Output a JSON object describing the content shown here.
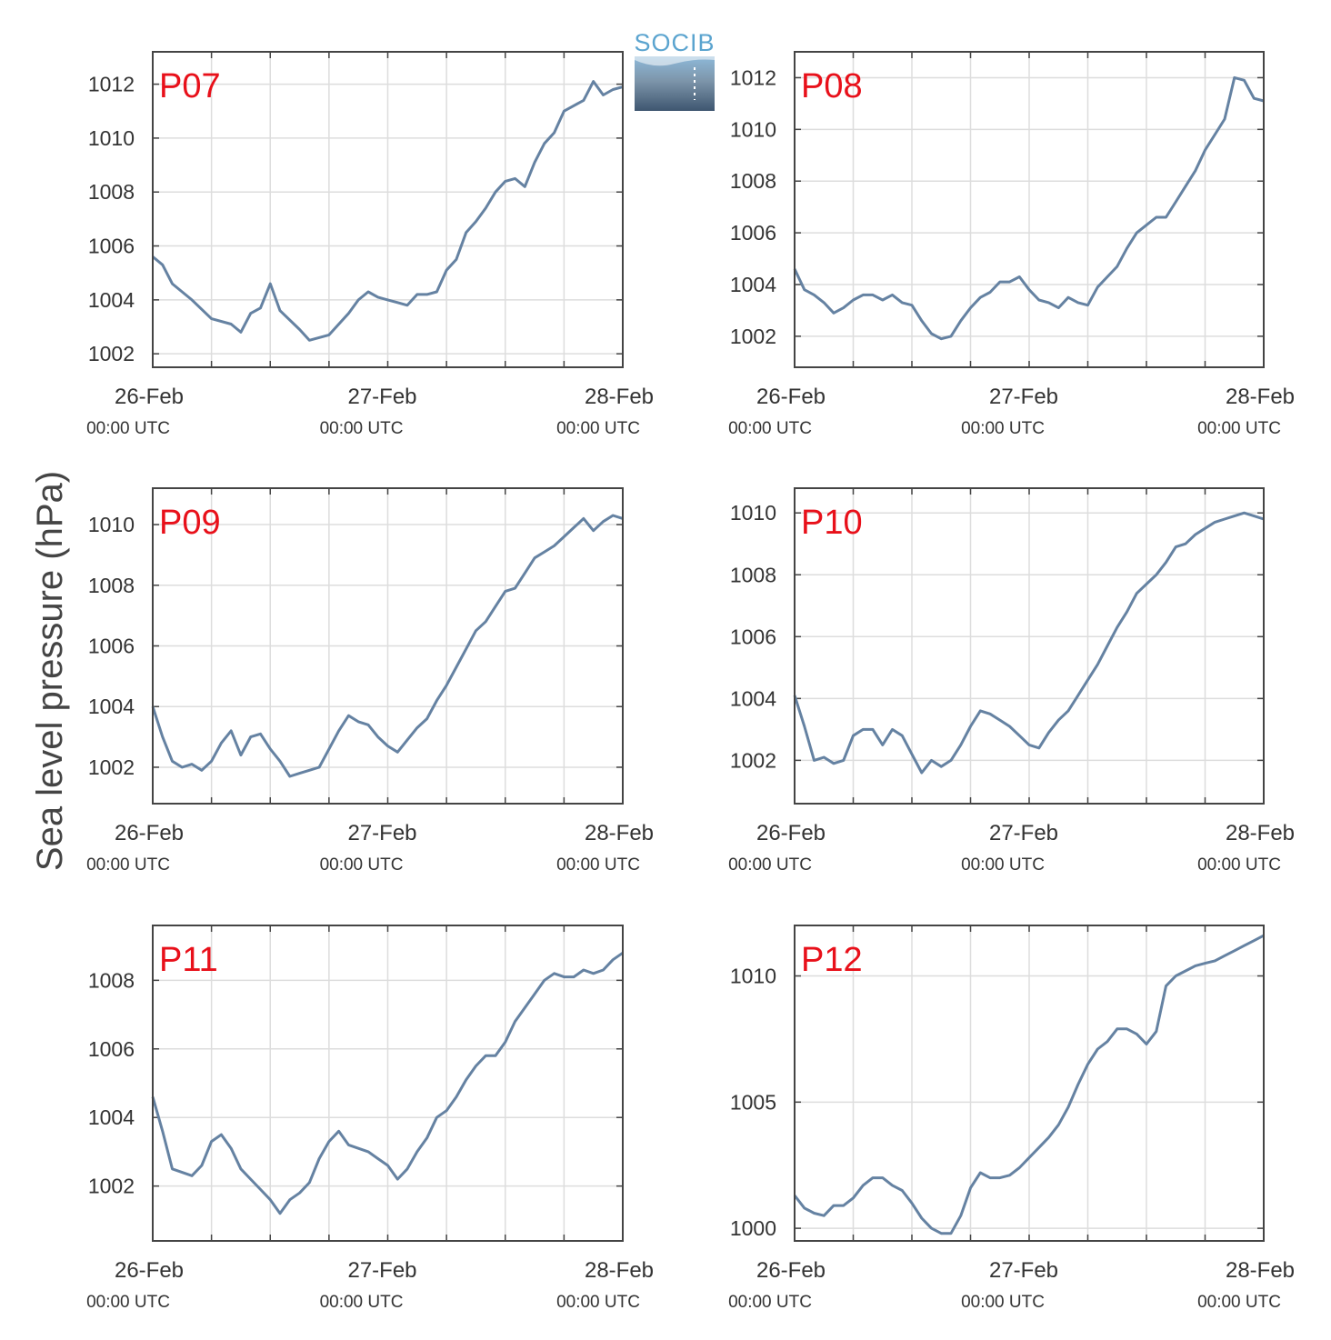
{
  "ylabel": "Sea level pressure (hPa)",
  "logo": {
    "text": "SOCIB"
  },
  "colors": {
    "line": "#6582a2",
    "title": "#e8101a",
    "grid": "#dddddd",
    "axis": "#444444"
  },
  "chart_data": [
    {
      "type": "line",
      "title": "P07",
      "x_ticks": [
        {
          "date": "26-Feb",
          "time": "00:00 UTC"
        },
        {
          "date": "27-Feb",
          "time": "00:00 UTC"
        },
        {
          "date": "28-Feb",
          "time": "00:00 UTC"
        }
      ],
      "xlim": [
        0,
        48
      ],
      "ylim": [
        1001.5,
        1013.2
      ],
      "yticks": [
        1002,
        1004,
        1006,
        1008,
        1010,
        1012
      ],
      "series": [
        {
          "x": [
            0,
            1,
            2,
            4,
            6,
            8,
            9,
            10,
            11,
            12,
            13,
            15,
            16,
            18,
            20,
            21,
            22,
            23,
            24,
            25,
            26,
            27,
            28,
            29,
            30,
            31,
            32,
            33,
            34,
            35,
            36,
            37,
            38,
            39,
            40,
            41,
            42,
            43,
            44,
            45,
            46,
            47,
            48
          ],
          "y": [
            1005.6,
            1005.3,
            1004.6,
            1004.0,
            1003.3,
            1003.1,
            1002.8,
            1003.5,
            1003.7,
            1004.6,
            1003.6,
            1002.9,
            1002.5,
            1002.7,
            1003.5,
            1004.0,
            1004.3,
            1004.1,
            1004.0,
            1003.9,
            1003.8,
            1004.2,
            1004.2,
            1004.3,
            1005.1,
            1005.5,
            1006.5,
            1006.9,
            1007.4,
            1008.0,
            1008.4,
            1008.5,
            1008.2,
            1009.1,
            1009.8,
            1010.2,
            1011.0,
            1011.2,
            1011.4,
            1012.1,
            1011.6,
            1011.8,
            1011.9
          ]
        }
      ]
    },
    {
      "type": "line",
      "title": "P08",
      "x_ticks": [
        {
          "date": "26-Feb",
          "time": "00:00 UTC"
        },
        {
          "date": "27-Feb",
          "time": "00:00 UTC"
        },
        {
          "date": "28-Feb",
          "time": "00:00 UTC"
        }
      ],
      "xlim": [
        0,
        48
      ],
      "ylim": [
        1000.8,
        1013.0
      ],
      "yticks": [
        1002,
        1004,
        1006,
        1008,
        1010,
        1012
      ],
      "series": [
        {
          "x": [
            0,
            1,
            2,
            3,
            4,
            5,
            6,
            7,
            8,
            9,
            10,
            11,
            12,
            13,
            14,
            15,
            16,
            17,
            18,
            19,
            20,
            21,
            22,
            23,
            24,
            25,
            26,
            27,
            28,
            29,
            30,
            31,
            32,
            33,
            34,
            35,
            36,
            37,
            38,
            39,
            40,
            41,
            42,
            43,
            44,
            45,
            46,
            47,
            48
          ],
          "y": [
            1004.6,
            1003.8,
            1003.6,
            1003.3,
            1002.9,
            1003.1,
            1003.4,
            1003.6,
            1003.6,
            1003.4,
            1003.6,
            1003.3,
            1003.2,
            1002.6,
            1002.1,
            1001.9,
            1002.0,
            1002.6,
            1003.1,
            1003.5,
            1003.7,
            1004.1,
            1004.1,
            1004.3,
            1003.8,
            1003.4,
            1003.3,
            1003.1,
            1003.5,
            1003.3,
            1003.2,
            1003.9,
            1004.3,
            1004.7,
            1005.4,
            1006.0,
            1006.3,
            1006.6,
            1006.6,
            1007.2,
            1007.8,
            1008.4,
            1009.2,
            1009.8,
            1010.4,
            1012.0,
            1011.9,
            1011.2,
            1011.1
          ]
        }
      ]
    },
    {
      "type": "line",
      "title": "P09",
      "x_ticks": [
        {
          "date": "26-Feb",
          "time": "00:00 UTC"
        },
        {
          "date": "27-Feb",
          "time": "00:00 UTC"
        },
        {
          "date": "28-Feb",
          "time": "00:00 UTC"
        }
      ],
      "xlim": [
        0,
        48
      ],
      "ylim": [
        1000.8,
        1011.2
      ],
      "yticks": [
        1002,
        1004,
        1006,
        1008,
        1010
      ],
      "series": [
        {
          "x": [
            0,
            1,
            2,
            3,
            4,
            5,
            6,
            7,
            8,
            9,
            10,
            11,
            12,
            13,
            14,
            15,
            16,
            17,
            18,
            19,
            20,
            21,
            22,
            23,
            24,
            25,
            26,
            27,
            28,
            29,
            30,
            31,
            32,
            33,
            34,
            35,
            36,
            37,
            38,
            39,
            40,
            41,
            42,
            43,
            44,
            45,
            46,
            47,
            48
          ],
          "y": [
            1004.0,
            1003.0,
            1002.2,
            1002.0,
            1002.1,
            1001.9,
            1002.2,
            1002.8,
            1003.2,
            1002.4,
            1003.0,
            1003.1,
            1002.6,
            1002.2,
            1001.7,
            1001.8,
            1001.9,
            1002.0,
            1002.6,
            1003.2,
            1003.7,
            1003.5,
            1003.4,
            1003.0,
            1002.7,
            1002.5,
            1002.9,
            1003.3,
            1003.6,
            1004.2,
            1004.7,
            1005.3,
            1005.9,
            1006.5,
            1006.8,
            1007.3,
            1007.8,
            1007.9,
            1008.4,
            1008.9,
            1009.1,
            1009.3,
            1009.6,
            1009.9,
            1010.2,
            1009.8,
            1010.1,
            1010.3,
            1010.2
          ]
        }
      ]
    },
    {
      "type": "line",
      "title": "P10",
      "x_ticks": [
        {
          "date": "26-Feb",
          "time": "00:00 UTC"
        },
        {
          "date": "27-Feb",
          "time": "00:00 UTC"
        },
        {
          "date": "28-Feb",
          "time": "00:00 UTC"
        }
      ],
      "xlim": [
        0,
        48
      ],
      "ylim": [
        1000.6,
        1010.8
      ],
      "yticks": [
        1002,
        1004,
        1006,
        1008,
        1010
      ],
      "series": [
        {
          "x": [
            0,
            1,
            2,
            3,
            4,
            5,
            6,
            7,
            8,
            9,
            10,
            11,
            12,
            13,
            14,
            15,
            16,
            17,
            18,
            19,
            20,
            21,
            22,
            23,
            24,
            25,
            26,
            27,
            28,
            29,
            30,
            31,
            32,
            33,
            34,
            35,
            36,
            37,
            38,
            39,
            40,
            41,
            42,
            43,
            44,
            45,
            46,
            47,
            48
          ],
          "y": [
            1004.1,
            1003.1,
            1002.0,
            1002.1,
            1001.9,
            1002.0,
            1002.8,
            1003.0,
            1003.0,
            1002.5,
            1003.0,
            1002.8,
            1002.2,
            1001.6,
            1002.0,
            1001.8,
            1002.0,
            1002.5,
            1003.1,
            1003.6,
            1003.5,
            1003.3,
            1003.1,
            1002.8,
            1002.5,
            1002.4,
            1002.9,
            1003.3,
            1003.6,
            1004.1,
            1004.6,
            1005.1,
            1005.7,
            1006.3,
            1006.8,
            1007.4,
            1007.7,
            1008.0,
            1008.4,
            1008.9,
            1009.0,
            1009.3,
            1009.5,
            1009.7,
            1009.8,
            1009.9,
            1010.0,
            1009.9,
            1009.8
          ]
        }
      ]
    },
    {
      "type": "line",
      "title": "P11",
      "x_ticks": [
        {
          "date": "26-Feb",
          "time": "00:00 UTC"
        },
        {
          "date": "27-Feb",
          "time": "00:00 UTC"
        },
        {
          "date": "28-Feb",
          "time": "00:00 UTC"
        }
      ],
      "xlim": [
        0,
        48
      ],
      "ylim": [
        1000.4,
        1009.6
      ],
      "yticks": [
        1002,
        1004,
        1006,
        1008
      ],
      "series": [
        {
          "x": [
            0,
            1,
            2,
            3,
            4,
            5,
            6,
            7,
            8,
            9,
            10,
            11,
            12,
            13,
            14,
            15,
            16,
            17,
            18,
            19,
            20,
            21,
            22,
            23,
            24,
            25,
            26,
            27,
            28,
            29,
            30,
            31,
            32,
            33,
            34,
            35,
            36,
            37,
            38,
            39,
            40,
            41,
            42,
            43,
            44,
            45,
            46,
            47,
            48
          ],
          "y": [
            1004.6,
            1003.6,
            1002.5,
            1002.4,
            1002.3,
            1002.6,
            1003.3,
            1003.5,
            1003.1,
            1002.5,
            1002.2,
            1001.9,
            1001.6,
            1001.2,
            1001.6,
            1001.8,
            1002.1,
            1002.8,
            1003.3,
            1003.6,
            1003.2,
            1003.1,
            1003.0,
            1002.8,
            1002.6,
            1002.2,
            1002.5,
            1003.0,
            1003.4,
            1004.0,
            1004.2,
            1004.6,
            1005.1,
            1005.5,
            1005.8,
            1005.8,
            1006.2,
            1006.8,
            1007.2,
            1007.6,
            1008.0,
            1008.2,
            1008.1,
            1008.1,
            1008.3,
            1008.2,
            1008.3,
            1008.6,
            1008.8
          ]
        }
      ]
    },
    {
      "type": "line",
      "title": "P12",
      "x_ticks": [
        {
          "date": "26-Feb",
          "time": "00:00 UTC"
        },
        {
          "date": "27-Feb",
          "time": "00:00 UTC"
        },
        {
          "date": "28-Feb",
          "time": "00:00 UTC"
        }
      ],
      "xlim": [
        0,
        48
      ],
      "ylim": [
        999.5,
        1012.0
      ],
      "yticks": [
        1000,
        1005,
        1010
      ],
      "series": [
        {
          "x": [
            0,
            1,
            2,
            3,
            4,
            5,
            6,
            7,
            8,
            9,
            10,
            11,
            12,
            13,
            14,
            15,
            16,
            17,
            18,
            19,
            20,
            21,
            22,
            23,
            24,
            25,
            26,
            27,
            28,
            29,
            30,
            31,
            32,
            33,
            34,
            35,
            36,
            37,
            38,
            39,
            40,
            41,
            42,
            43,
            44,
            45,
            46,
            47,
            48
          ],
          "y": [
            1001.3,
            1000.8,
            1000.6,
            1000.5,
            1000.9,
            1000.9,
            1001.2,
            1001.7,
            1002.0,
            1002.0,
            1001.7,
            1001.5,
            1001.0,
            1000.4,
            1000.0,
            999.8,
            999.8,
            1000.5,
            1001.6,
            1002.2,
            1002.0,
            1002.0,
            1002.1,
            1002.4,
            1002.8,
            1003.2,
            1003.6,
            1004.1,
            1004.8,
            1005.7,
            1006.5,
            1007.1,
            1007.4,
            1007.9,
            1007.9,
            1007.7,
            1007.3,
            1007.8,
            1009.6,
            1010.0,
            1010.2,
            1010.4,
            1010.5,
            1010.6,
            1010.8,
            1011.0,
            1011.2,
            1011.4,
            1011.6
          ]
        }
      ]
    }
  ]
}
